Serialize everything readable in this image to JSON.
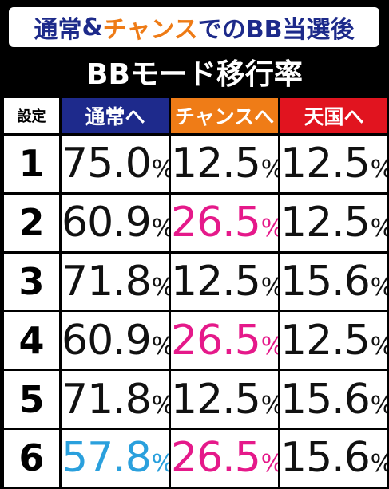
{
  "title": {
    "part1": "通常",
    "amp": "&",
    "part2": "チャンス",
    "part3": "でのBB当選後"
  },
  "subtitle": "BBモード移行率",
  "table": {
    "headers": {
      "setting": "設定",
      "normal": "通常へ",
      "chance": "チャンスへ",
      "heaven": "天国へ"
    },
    "header_colors": {
      "normal": "#1e2a8c",
      "chance": "#ef7c17",
      "heaven": "#e1141f"
    },
    "rows": [
      {
        "setting": "1",
        "normal": "75.0",
        "chance": "12.5",
        "heaven": "12.5",
        "pct": "%",
        "normal_color": "black",
        "chance_color": "black",
        "heaven_color": "black"
      },
      {
        "setting": "2",
        "normal": "60.9",
        "chance": "26.5",
        "heaven": "12.5",
        "pct": "%",
        "normal_color": "black",
        "chance_color": "pink",
        "heaven_color": "black"
      },
      {
        "setting": "3",
        "normal": "71.8",
        "chance": "12.5",
        "heaven": "15.6",
        "pct": "%",
        "normal_color": "black",
        "chance_color": "black",
        "heaven_color": "black"
      },
      {
        "setting": "4",
        "normal": "60.9",
        "chance": "26.5",
        "heaven": "12.5",
        "pct": "%",
        "normal_color": "black",
        "chance_color": "pink",
        "heaven_color": "black"
      },
      {
        "setting": "5",
        "normal": "71.8",
        "chance": "12.5",
        "heaven": "15.6",
        "pct": "%",
        "normal_color": "black",
        "chance_color": "black",
        "heaven_color": "black"
      },
      {
        "setting": "6",
        "normal": "57.8",
        "chance": "26.5",
        "heaven": "15.6",
        "pct": "%",
        "normal_color": "cyan",
        "chance_color": "pink",
        "heaven_color": "black"
      }
    ],
    "highlight_colors": {
      "black": "#111111",
      "pink": "#e5198a",
      "cyan": "#2aa0dd"
    }
  }
}
